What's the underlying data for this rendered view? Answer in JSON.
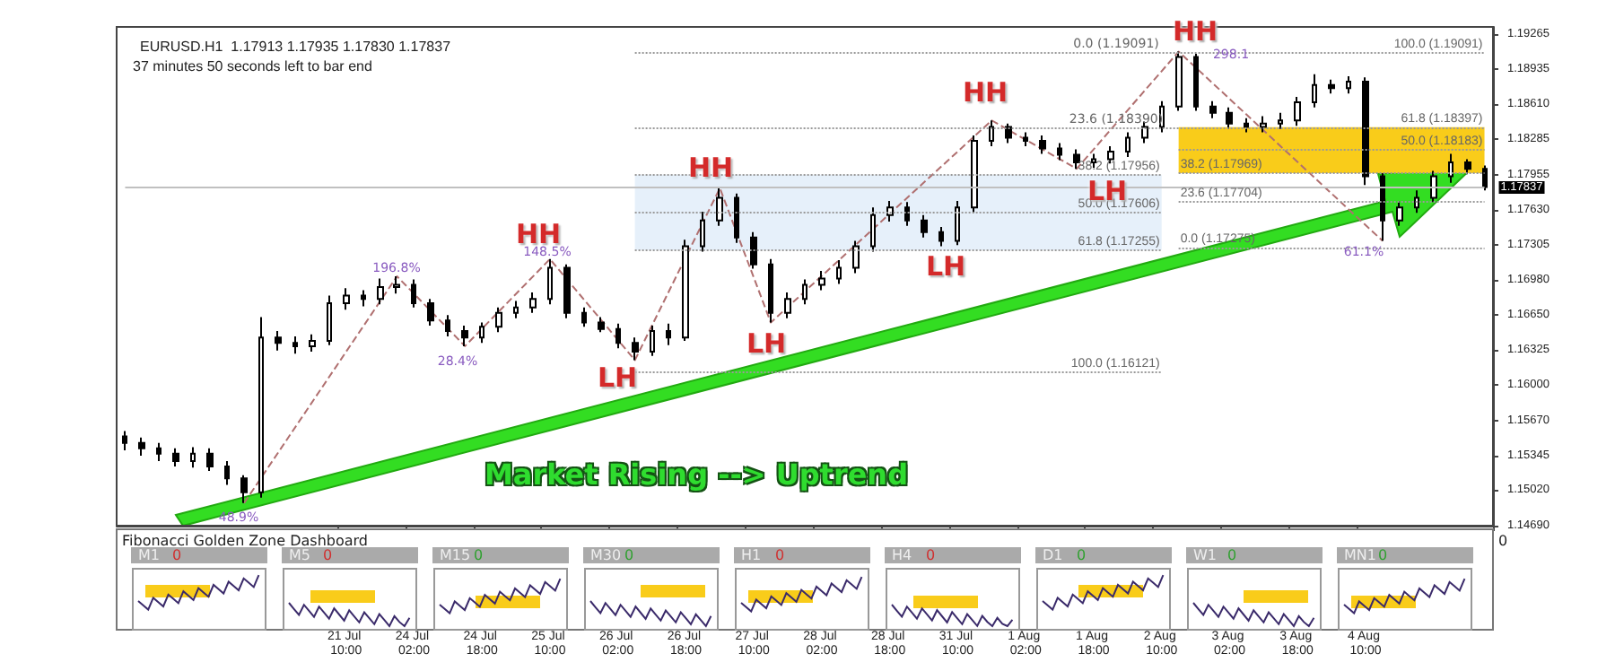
{
  "chart_data": {
    "type": "candlestick",
    "title": "EURUSD.H1  1.17913 1.17935 1.17830 1.17837",
    "subtitle": "37 minutes 50 seconds left to bar end",
    "categories": [
      null,
      null,
      null,
      null,
      null,
      null,
      null,
      null,
      null,
      null,
      null,
      null,
      null,
      "21 Jul 10:00",
      null,
      null,
      null,
      "24 Jul 02:00",
      null,
      null,
      null,
      "24 Jul 18:00",
      null,
      null,
      null,
      "25 Jul 10:00",
      null,
      null,
      null,
      "26 Jul 02:00",
      null,
      null,
      null,
      "26 Jul 18:00",
      null,
      null,
      null,
      "27 Jul 10:00",
      null,
      null,
      null,
      "28 Jul 02:00",
      null,
      null,
      null,
      "28 Jul 18:00",
      null,
      null,
      null,
      "31 Jul 10:00",
      null,
      null,
      null,
      "1 Aug 02:00",
      null,
      null,
      null,
      "1 Aug 18:00",
      null,
      null,
      null,
      "2 Aug 10:00",
      null,
      null,
      null,
      "3 Aug 02:00",
      null,
      null,
      null,
      "3 Aug 18:00",
      null,
      null,
      null,
      "4 Aug 10:00",
      null,
      null,
      null,
      null,
      null,
      null,
      null
    ],
    "ohlc": [
      [
        1.1552,
        1.1557,
        1.1539,
        1.1546
      ],
      [
        1.1546,
        1.1551,
        1.1534,
        1.1541
      ],
      [
        1.1541,
        1.1546,
        1.1529,
        1.1536
      ],
      [
        1.1536,
        1.1541,
        1.1524,
        1.1529
      ],
      [
        1.1529,
        1.1542,
        1.1523,
        1.1536
      ],
      [
        1.1536,
        1.1541,
        1.152,
        1.1524
      ],
      [
        1.1524,
        1.1529,
        1.1507,
        1.1513
      ],
      [
        1.1513,
        1.1516,
        1.149,
        1.15
      ],
      [
        1.15,
        1.1663,
        1.1495,
        1.1644
      ],
      [
        1.1644,
        1.165,
        1.1632,
        1.1639
      ],
      [
        1.1639,
        1.1645,
        1.1629,
        1.1636
      ],
      [
        1.1636,
        1.1647,
        1.1631,
        1.1641
      ],
      [
        1.1641,
        1.1683,
        1.1637,
        1.1676
      ],
      [
        1.1676,
        1.169,
        1.167,
        1.1683
      ],
      [
        1.1683,
        1.1688,
        1.1673,
        1.168
      ],
      [
        1.168,
        1.1699,
        1.1675,
        1.1691
      ],
      [
        1.1691,
        1.1701,
        1.1685,
        1.1693
      ],
      [
        1.1693,
        1.1698,
        1.1672,
        1.1676
      ],
      [
        1.1676,
        1.168,
        1.1655,
        1.166
      ],
      [
        1.166,
        1.1665,
        1.1645,
        1.165
      ],
      [
        1.165,
        1.1655,
        1.1636,
        1.1644
      ],
      [
        1.1644,
        1.1658,
        1.1639,
        1.1654
      ],
      [
        1.1654,
        1.1672,
        1.1649,
        1.1667
      ],
      [
        1.1667,
        1.1678,
        1.1662,
        1.1672
      ],
      [
        1.1672,
        1.1686,
        1.1667,
        1.168
      ],
      [
        1.168,
        1.1717,
        1.1675,
        1.1709
      ],
      [
        1.1709,
        1.1712,
        1.1662,
        1.1667
      ],
      [
        1.1667,
        1.1672,
        1.1654,
        1.1658
      ],
      [
        1.1658,
        1.1663,
        1.1649,
        1.1652
      ],
      [
        1.1652,
        1.1657,
        1.1634,
        1.1639
      ],
      [
        1.1639,
        1.1644,
        1.1623,
        1.1631
      ],
      [
        1.1631,
        1.1655,
        1.1627,
        1.165
      ],
      [
        1.165,
        1.1657,
        1.1637,
        1.1644
      ],
      [
        1.1644,
        1.1735,
        1.1641,
        1.1729
      ],
      [
        1.1729,
        1.1761,
        1.1724,
        1.1753
      ],
      [
        1.1753,
        1.1783,
        1.1748,
        1.1774
      ],
      [
        1.1774,
        1.1778,
        1.1732,
        1.1737
      ],
      [
        1.1737,
        1.1742,
        1.1708,
        1.1712
      ],
      [
        1.1712,
        1.1717,
        1.1658,
        1.1667
      ],
      [
        1.1667,
        1.1686,
        1.1662,
        1.168
      ],
      [
        1.168,
        1.1698,
        1.1675,
        1.1693
      ],
      [
        1.1693,
        1.1706,
        1.1688,
        1.1699
      ],
      [
        1.1699,
        1.1716,
        1.1694,
        1.1709
      ],
      [
        1.1709,
        1.1734,
        1.1704,
        1.1729
      ],
      [
        1.1729,
        1.1765,
        1.1724,
        1.1758
      ],
      [
        1.1758,
        1.1771,
        1.1752,
        1.1765
      ],
      [
        1.1765,
        1.177,
        1.1748,
        1.1753
      ],
      [
        1.1753,
        1.1758,
        1.1737,
        1.1742
      ],
      [
        1.1742,
        1.1747,
        1.1729,
        1.1734
      ],
      [
        1.1734,
        1.1771,
        1.173,
        1.1765
      ],
      [
        1.1765,
        1.1832,
        1.176,
        1.1827
      ],
      [
        1.1827,
        1.1846,
        1.1822,
        1.184
      ],
      [
        1.184,
        1.1843,
        1.1825,
        1.183
      ],
      [
        1.183,
        1.1835,
        1.1822,
        1.1827
      ],
      [
        1.1827,
        1.1832,
        1.1815,
        1.182
      ],
      [
        1.182,
        1.1825,
        1.1809,
        1.1814
      ],
      [
        1.1814,
        1.1819,
        1.1801,
        1.1807
      ],
      [
        1.1807,
        1.1815,
        1.1802,
        1.181
      ],
      [
        1.181,
        1.1822,
        1.1806,
        1.1817
      ],
      [
        1.1817,
        1.1835,
        1.1812,
        1.183
      ],
      [
        1.183,
        1.1845,
        1.1825,
        1.184
      ],
      [
        1.184,
        1.1864,
        1.1835,
        1.1859
      ],
      [
        1.1859,
        1.191,
        1.1855,
        1.1905
      ],
      [
        1.1905,
        1.1908,
        1.1855,
        1.1859
      ],
      [
        1.1859,
        1.1864,
        1.1848,
        1.1853
      ],
      [
        1.1853,
        1.1858,
        1.1838,
        1.1843
      ],
      [
        1.1843,
        1.1848,
        1.1835,
        1.184
      ],
      [
        1.184,
        1.185,
        1.1835,
        1.1843
      ],
      [
        1.1843,
        1.1853,
        1.1838,
        1.1846
      ],
      [
        1.1846,
        1.1868,
        1.1841,
        1.1863
      ],
      [
        1.1863,
        1.1889,
        1.1858,
        1.1879
      ],
      [
        1.1879,
        1.1884,
        1.1871,
        1.1876
      ],
      [
        1.1876,
        1.1887,
        1.1871,
        1.1882
      ],
      [
        1.1882,
        1.1886,
        1.1786,
        1.1794
      ],
      [
        1.1794,
        1.1797,
        1.1734,
        1.1753
      ],
      [
        1.1753,
        1.1771,
        1.1748,
        1.1765
      ],
      [
        1.1765,
        1.1781,
        1.176,
        1.1774
      ],
      [
        1.1774,
        1.1799,
        1.177,
        1.1794
      ],
      [
        1.1794,
        1.1815,
        1.1788,
        1.1807
      ],
      [
        1.1807,
        1.181,
        1.1796,
        1.1801
      ],
      [
        1.1801,
        1.1804,
        1.1781,
        1.1784
      ]
    ],
    "series": [
      {
        "type": "line",
        "color": "#b07070",
        "line_style": "dashed",
        "marker": "none",
        "values": [
          null,
          null,
          null,
          null,
          null,
          null,
          null,
          1.149,
          null,
          null,
          null,
          null,
          null,
          null,
          null,
          null,
          1.1701,
          null,
          null,
          null,
          1.1636,
          null,
          null,
          null,
          null,
          1.1717,
          null,
          null,
          null,
          null,
          1.1623,
          null,
          null,
          null,
          null,
          1.1783,
          null,
          null,
          1.1658,
          null,
          null,
          null,
          null,
          null,
          null,
          null,
          null,
          null,
          null,
          null,
          null,
          1.1846,
          null,
          null,
          null,
          null,
          1.1801,
          null,
          null,
          null,
          null,
          null,
          1.191,
          null,
          null,
          null,
          null,
          null,
          null,
          null,
          null,
          null,
          null,
          null,
          1.1734,
          null,
          null,
          null,
          null,
          null,
          null
        ]
      }
    ],
    "ylim": [
      1.1469,
      1.1933
    ],
    "yticks": [
      {
        "value": 1.1469,
        "label": "1.14690"
      },
      {
        "value": 1.1502,
        "label": "1.15020"
      },
      {
        "value": 1.15345,
        "label": "1.15345"
      },
      {
        "value": 1.1567,
        "label": "1.15670"
      },
      {
        "value": 1.16,
        "label": "1.16000"
      },
      {
        "value": 1.16325,
        "label": "1.16325"
      },
      {
        "value": 1.1665,
        "label": "1.16650"
      },
      {
        "value": 1.1698,
        "label": "1.16980"
      },
      {
        "value": 1.17305,
        "label": "1.17305"
      },
      {
        "value": 1.1763,
        "label": "1.17630"
      },
      {
        "value": 1.17955,
        "label": "1.17955"
      },
      {
        "value": 1.18285,
        "label": "1.18285"
      },
      {
        "value": 1.1861,
        "label": "1.18610"
      },
      {
        "value": 1.18935,
        "label": "1.18935"
      },
      {
        "value": 1.19265,
        "label": "1.19265"
      }
    ],
    "ref_lines": [
      {
        "axis": "y",
        "value": 1.17837,
        "label": "1.17837",
        "color": "#c0c0c0",
        "line_style": "solid"
      },
      {
        "axis": "y",
        "value": 1.19091,
        "label": "100.0 (1.19091)",
        "color": "#999999",
        "line_style": "dotted"
      },
      {
        "axis": "y",
        "value": 1.18397,
        "label": "61.8 (1.18397)",
        "color": "#999999",
        "line_style": "dotted"
      },
      {
        "axis": "y",
        "value": 1.18183,
        "label": "50.0 (1.18183)",
        "color": "#999999",
        "line_style": "dotted"
      },
      {
        "axis": "y",
        "value": 1.17969,
        "label": "38.2 (1.17969)",
        "color": "#999999",
        "line_style": "dotted"
      },
      {
        "axis": "y",
        "value": 1.17704,
        "label": "23.6 (1.17704)",
        "color": "#999999",
        "line_style": "dotted"
      },
      {
        "axis": "y",
        "value": 1.17275,
        "label": "0.0 (1.17275)",
        "color": "#999999",
        "line_style": "dotted"
      },
      {
        "axis": "y",
        "value": 1.17956,
        "label": "38.2 (1.17956)",
        "color": "#999999",
        "line_style": "dotted"
      },
      {
        "axis": "y",
        "value": 1.17606,
        "label": "50.0 (1.17606)",
        "color": "#999999",
        "line_style": "dotted"
      },
      {
        "axis": "y",
        "value": 1.17255,
        "label": "61.8 (1.17255)",
        "color": "#999999",
        "line_style": "dotted"
      },
      {
        "axis": "y",
        "value": 1.16121,
        "label": "100.0 (1.16121)",
        "color": "#999999",
        "line_style": "dotted"
      }
    ],
    "bands": [
      {
        "axis": "y",
        "from": 1.17255,
        "to": 1.17956,
        "color": "#e6f0fa"
      },
      {
        "axis": "y",
        "from": 1.17969,
        "to": 1.18397,
        "color": "#f9cc1a"
      }
    ],
    "annotations": [
      "HH",
      "HH",
      "HH",
      "HH",
      "LH",
      "LH",
      "LH",
      "LH",
      "Market Rising --> Uptrend",
      "48.9%",
      "196.8%",
      "28.4%",
      "148.5%",
      "298.1",
      "61.1%",
      "Fibonacci Golden Zone Dashboard",
      "M1",
      "M5",
      "M15",
      "M30",
      "H1",
      "H4",
      "D1",
      "W1",
      "MN1",
      "0",
      "0",
      "0",
      "0",
      "0",
      "0",
      "0",
      "0",
      "0",
      "0",
      "0.0 (1.19091)",
      "23.6 (1.18390)"
    ]
  }
}
